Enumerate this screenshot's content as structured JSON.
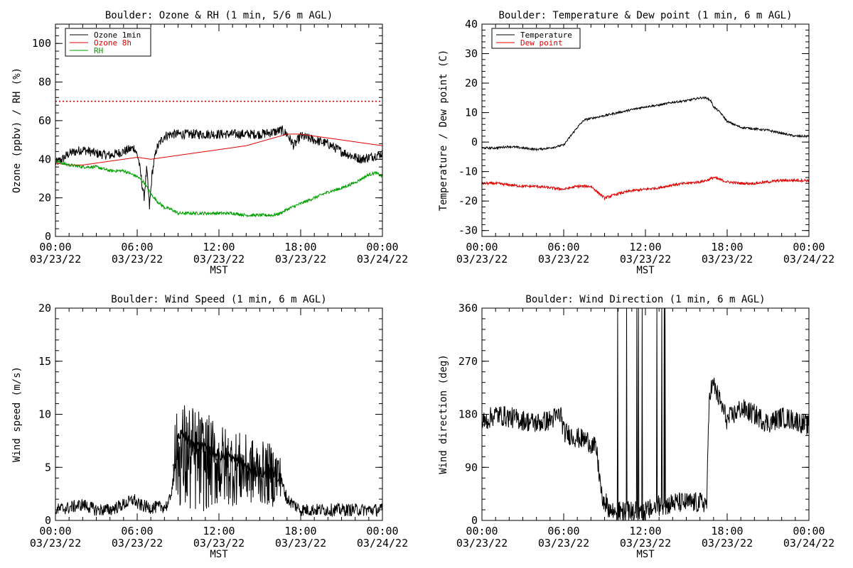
{
  "chart_data": [
    {
      "type": "line",
      "title": "Boulder: Ozone & RH (1 min, 5/6 m AGL)",
      "xlabel": "MST",
      "ylabel": "Ozone (ppbv) / RH (%)",
      "xlim": [
        0,
        24
      ],
      "ylim": [
        0,
        110
      ],
      "yticks": [
        "0",
        "20",
        "40",
        "60",
        "80",
        "100"
      ],
      "yticks_values": [
        0,
        20,
        40,
        60,
        80,
        100
      ],
      "xticks_values": [
        0,
        6,
        12,
        18,
        24
      ],
      "xticks_time": [
        "00:00",
        "06:00",
        "12:00",
        "18:00",
        "00:00"
      ],
      "xticks_date": [
        "03/23/22",
        "03/23/22",
        "03/23/22",
        "03/23/22",
        "03/24/22"
      ],
      "legend_position": "top-left",
      "reference_line": {
        "y": 70,
        "color": "#e00000",
        "style": "dotted"
      },
      "series": [
        {
          "name": "Ozone 1min",
          "color": "#000000",
          "noise": 2.5,
          "x": [
            0,
            0.5,
            1,
            1.5,
            2,
            3,
            4,
            5,
            5.8,
            6.1,
            6.3,
            6.5,
            6.7,
            6.9,
            7.1,
            7.4,
            7.7,
            8,
            8.5,
            9,
            10,
            11,
            12,
            13,
            14,
            15,
            16,
            16.6,
            17,
            17.5,
            18,
            19,
            20,
            21,
            22,
            22.5,
            23,
            24
          ],
          "y": [
            38,
            40,
            43,
            44,
            45,
            43,
            42,
            44,
            46,
            40,
            30,
            20,
            35,
            15,
            33,
            45,
            49,
            52,
            53,
            53,
            53,
            53,
            53,
            53,
            53,
            53,
            54,
            55,
            53,
            47,
            52,
            50,
            48,
            44,
            41,
            40,
            41,
            43
          ]
        },
        {
          "name": "Ozone 8h",
          "color": "#e00000",
          "noise": 0,
          "x": [
            0,
            1,
            2,
            3,
            4,
            5,
            6,
            7,
            8,
            9,
            10,
            11,
            12,
            13,
            14,
            15,
            16,
            17,
            18,
            19,
            20,
            21,
            22,
            23,
            24
          ],
          "y": [
            38,
            37,
            37,
            38,
            39,
            40,
            41,
            40,
            41,
            42,
            43,
            44,
            45,
            46,
            47,
            49,
            51,
            53,
            53,
            52,
            51,
            50,
            49,
            48,
            47
          ]
        },
        {
          "name": "RH",
          "color": "#00a000",
          "noise": 0.8,
          "x": [
            0,
            1,
            2,
            3,
            4,
            5,
            6,
            6.5,
            7,
            7.5,
            8,
            8.5,
            9,
            10,
            11,
            12,
            13,
            14,
            15,
            16,
            16.5,
            17,
            18,
            19,
            20,
            21,
            22,
            23,
            23.5,
            24
          ],
          "y": [
            39,
            37,
            36,
            36,
            34,
            34,
            31,
            28,
            22,
            18,
            15,
            14,
            12,
            12,
            12,
            12,
            12,
            11,
            11,
            11,
            12,
            14,
            17,
            20,
            23,
            25,
            28,
            32,
            33,
            31
          ]
        }
      ]
    },
    {
      "type": "line",
      "title": "Boulder: Temperature & Dew point (1 min, 6 m AGL)",
      "xlabel": "MST",
      "ylabel": "Temperature / Dew point (C)",
      "xlim": [
        0,
        24
      ],
      "ylim": [
        -32,
        40
      ],
      "yticks": [
        "-30",
        "-20",
        "-10",
        "0",
        "10",
        "20",
        "30",
        "40"
      ],
      "yticks_values": [
        -30,
        -20,
        -10,
        0,
        10,
        20,
        30,
        40
      ],
      "xticks_values": [
        0,
        6,
        12,
        18,
        24
      ],
      "xticks_time": [
        "00:00",
        "06:00",
        "12:00",
        "18:00",
        "00:00"
      ],
      "xticks_date": [
        "03/23/22",
        "03/23/22",
        "03/23/22",
        "03/23/22",
        "03/24/22"
      ],
      "legend_position": "top-left",
      "series": [
        {
          "name": "Temperature",
          "color": "#000000",
          "noise": 0.35,
          "x": [
            0,
            1,
            2,
            3,
            4,
            5,
            6,
            6.5,
            7,
            7.5,
            8,
            9,
            10,
            11,
            12,
            13,
            14,
            15,
            16,
            16.5,
            16.8,
            17,
            17.5,
            18,
            19,
            20,
            21,
            22,
            23,
            24
          ],
          "y": [
            -2,
            -2,
            -1.5,
            -2,
            -2.5,
            -2,
            -1,
            2,
            5,
            7.5,
            8,
            9,
            10,
            11,
            12,
            12.5,
            13.5,
            14,
            15,
            15,
            14,
            12,
            10,
            7,
            5,
            4.5,
            4,
            3,
            2,
            2
          ]
        },
        {
          "name": "Dew point",
          "color": "#e00000",
          "noise": 0.45,
          "x": [
            0,
            1,
            2,
            3,
            4,
            5,
            6,
            7,
            8,
            8.5,
            9,
            10,
            11,
            12,
            13,
            14,
            15,
            16,
            16.5,
            17,
            18,
            19,
            20,
            21,
            22,
            23,
            24
          ],
          "y": [
            -14,
            -14,
            -14.5,
            -15,
            -15,
            -15.5,
            -16,
            -15,
            -15,
            -17,
            -19,
            -17.5,
            -16.5,
            -16,
            -15.5,
            -14.5,
            -14,
            -13.5,
            -13,
            -12,
            -13.5,
            -14,
            -14,
            -13.5,
            -13,
            -13,
            -13
          ]
        }
      ]
    },
    {
      "type": "line",
      "title": "Boulder: Wind Speed (1 min, 6 m AGL)",
      "xlabel": "MST",
      "ylabel": "Wind speed (m/s)",
      "xlim": [
        0,
        24
      ],
      "ylim": [
        0,
        20
      ],
      "yticks": [
        "0",
        "5",
        "10",
        "15",
        "20"
      ],
      "yticks_values": [
        0,
        5,
        10,
        15,
        20
      ],
      "xticks_values": [
        0,
        6,
        12,
        18,
        24
      ],
      "xticks_time": [
        "00:00",
        "06:00",
        "12:00",
        "18:00",
        "00:00"
      ],
      "xticks_date": [
        "03/23/22",
        "03/23/22",
        "03/23/22",
        "03/23/22",
        "03/24/22"
      ],
      "series": [
        {
          "name": "",
          "color": "#000000",
          "noise": 0.6,
          "x": [
            0,
            1,
            2,
            3,
            4,
            5,
            5.8,
            6,
            7,
            8,
            8.3,
            8.7,
            9,
            9.5,
            10,
            11,
            12,
            13,
            14,
            15,
            16,
            16.5,
            17,
            18,
            19,
            20,
            21,
            22,
            23,
            24
          ],
          "y": [
            1,
            1.2,
            1.5,
            1,
            1,
            1.5,
            2,
            1.5,
            1.2,
            1.3,
            1.5,
            4,
            8,
            8,
            7,
            7,
            6,
            6,
            5,
            4.5,
            4.5,
            4,
            2,
            1,
            1,
            1,
            1,
            1,
            1,
            1
          ]
        },
        {
          "name": "",
          "color": "#000000",
          "noise": 3.2,
          "x": [
            0,
            8.6,
            8.8,
            9.5,
            10.5,
            12,
            13.5,
            15,
            16.3,
            16.6,
            24
          ],
          "y": [
            0,
            0,
            2.5,
            4,
            3.5,
            2.5,
            2,
            1.5,
            1.5,
            0,
            0
          ]
        }
      ]
    },
    {
      "type": "line",
      "title": "Boulder: Wind Direction (1 min, 6 m AGL)",
      "xlabel": "MST",
      "ylabel": "Wind direction (deg)",
      "xlim": [
        0,
        24
      ],
      "ylim": [
        0,
        360
      ],
      "yticks": [
        "0",
        "90",
        "180",
        "270",
        "360"
      ],
      "yticks_values": [
        0,
        90,
        180,
        270,
        360
      ],
      "xticks_values": [
        0,
        6,
        12,
        18,
        24
      ],
      "xticks_time": [
        "00:00",
        "06:00",
        "12:00",
        "18:00",
        "00:00"
      ],
      "xticks_date": [
        "03/23/22",
        "03/23/22",
        "03/23/22",
        "03/23/22",
        "03/24/22"
      ],
      "series": [
        {
          "name": "",
          "color": "#000000",
          "noise": 18,
          "x": [
            0,
            1,
            2,
            3,
            4,
            5,
            5.8,
            6,
            7,
            7.8,
            8.4,
            8.8,
            9.5,
            10.5,
            11.5,
            12,
            12.5,
            13,
            13.5,
            14,
            15,
            16,
            16.5,
            16.7,
            17,
            17.5,
            18,
            19,
            20,
            21,
            22,
            23,
            24
          ],
          "y": [
            165,
            180,
            175,
            170,
            165,
            170,
            180,
            150,
            140,
            135,
            120,
            40,
            15,
            15,
            15,
            15,
            20,
            25,
            25,
            30,
            30,
            30,
            30,
            220,
            230,
            200,
            170,
            190,
            180,
            165,
            175,
            170,
            160
          ]
        }
      ]
    }
  ]
}
